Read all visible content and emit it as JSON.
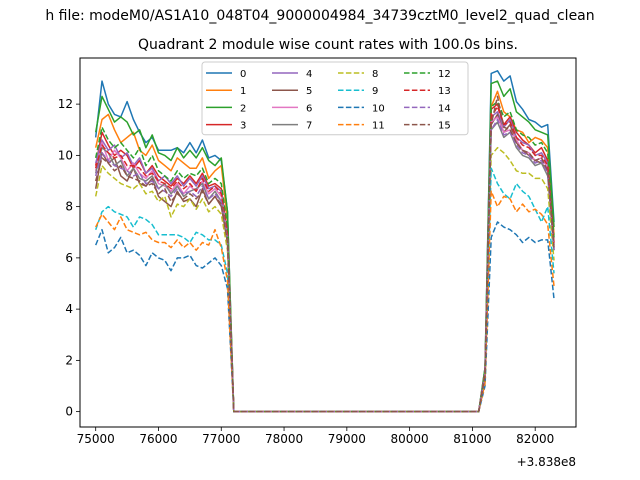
{
  "figure": {
    "suptitle": "h file: modeM0/AS1A10_048T04_9000004984_34739cztM0_level2_quad_clean"
  },
  "chart_data": {
    "type": "line",
    "title": "Quadrant 2 module wise count rates with 100.0s bins.",
    "xlabel": "",
    "ylabel": "",
    "x_offset_label": "+3.838e8",
    "xlim": [
      74750,
      82650
    ],
    "ylim": [
      -0.6,
      13.8
    ],
    "xticks": [
      75000,
      76000,
      77000,
      78000,
      79000,
      80000,
      81000,
      82000
    ],
    "yticks": [
      0,
      2,
      4,
      6,
      8,
      10,
      12
    ],
    "grid": false,
    "legend": {
      "placement": "top-center",
      "columns": 4
    },
    "x": [
      75000,
      75100,
      75200,
      75300,
      75400,
      75500,
      75600,
      75700,
      75800,
      75900,
      76000,
      76100,
      76200,
      76300,
      76400,
      76500,
      76600,
      76700,
      76800,
      76900,
      77000,
      77100,
      77200,
      81100,
      81200,
      81300,
      81400,
      81500,
      81600,
      81700,
      81800,
      81900,
      82000,
      82100,
      82200,
      82300
    ],
    "series": [
      {
        "name": "0",
        "color": "#1f77b4",
        "dash": "solid",
        "values": [
          10.7,
          12.9,
          12.0,
          11.6,
          11.5,
          12.1,
          11.4,
          10.9,
          10.5,
          10.7,
          10.2,
          10.2,
          10.2,
          10.3,
          10.1,
          10.5,
          10.1,
          10.6,
          9.9,
          10.0,
          9.8,
          7.8,
          0,
          0,
          1.7,
          13.2,
          13.3,
          12.9,
          13.1,
          12.1,
          11.8,
          11.4,
          11.3,
          11.1,
          11.2,
          7.4
        ]
      },
      {
        "name": "1",
        "color": "#ff7f0e",
        "dash": "solid",
        "values": [
          10.3,
          11.4,
          11.6,
          11.0,
          10.5,
          10.7,
          10.9,
          10.2,
          10.0,
          10.4,
          9.8,
          9.6,
          9.4,
          9.9,
          9.7,
          9.5,
          9.5,
          9.9,
          9.1,
          9.4,
          9.6,
          7.5,
          0,
          0,
          1.6,
          11.9,
          12.5,
          11.7,
          11.5,
          11.0,
          10.9,
          10.5,
          10.7,
          10.6,
          10.3,
          6.9
        ]
      },
      {
        "name": "2",
        "color": "#2ca02c",
        "dash": "solid",
        "values": [
          10.9,
          12.3,
          11.8,
          11.3,
          11.5,
          11.3,
          10.8,
          11.0,
          10.3,
          10.8,
          10.1,
          10.0,
          9.8,
          10.3,
          9.9,
          10.2,
          9.9,
          10.3,
          9.8,
          9.6,
          9.9,
          7.8,
          0,
          0,
          1.7,
          12.8,
          12.9,
          12.3,
          12.6,
          11.7,
          11.5,
          11.3,
          11.0,
          10.9,
          10.8,
          7.2
        ]
      },
      {
        "name": "3",
        "color": "#d62728",
        "dash": "solid",
        "values": [
          9.6,
          10.9,
          10.4,
          10.0,
          10.2,
          10.0,
          9.5,
          9.8,
          9.3,
          9.6,
          9.2,
          9.0,
          8.8,
          9.1,
          8.9,
          9.2,
          8.9,
          9.3,
          8.8,
          8.9,
          8.7,
          7.0,
          0,
          0,
          1.5,
          11.8,
          12.0,
          11.2,
          11.5,
          10.9,
          10.6,
          10.4,
          10.1,
          10.3,
          9.8,
          6.6
        ]
      },
      {
        "name": "4",
        "color": "#9467bd",
        "dash": "solid",
        "values": [
          9.7,
          10.6,
          10.2,
          10.4,
          9.9,
          10.1,
          9.6,
          9.9,
          9.3,
          9.5,
          9.0,
          9.2,
          8.9,
          9.2,
          8.8,
          9.1,
          8.8,
          9.2,
          8.7,
          8.8,
          8.6,
          6.9,
          0,
          0,
          1.5,
          11.5,
          11.7,
          11.1,
          11.4,
          10.7,
          10.5,
          10.4,
          10.0,
          10.1,
          9.7,
          6.5
        ]
      },
      {
        "name": "5",
        "color": "#8c564b",
        "dash": "solid",
        "values": [
          8.7,
          10.1,
          9.7,
          9.9,
          9.2,
          9.0,
          9.5,
          8.9,
          8.8,
          9.1,
          8.4,
          8.2,
          8.0,
          8.6,
          8.2,
          8.3,
          8.0,
          8.7,
          8.1,
          8.4,
          8.0,
          6.6,
          0,
          0,
          1.4,
          11.2,
          11.6,
          10.9,
          11.2,
          10.5,
          10.2,
          10.0,
          9.8,
          9.7,
          9.4,
          6.3
        ]
      },
      {
        "name": "6",
        "color": "#e377c2",
        "dash": "solid",
        "values": [
          9.4,
          10.5,
          9.8,
          10.2,
          9.9,
          9.4,
          9.7,
          9.3,
          9.1,
          9.4,
          8.9,
          8.8,
          8.6,
          8.9,
          8.5,
          8.8,
          8.6,
          9.0,
          8.5,
          8.7,
          8.4,
          6.8,
          0,
          0,
          1.5,
          11.3,
          11.5,
          10.9,
          11.0,
          10.6,
          10.2,
          10.1,
          9.8,
          9.9,
          9.5,
          6.4
        ]
      },
      {
        "name": "7",
        "color": "#7f7f7f",
        "dash": "solid",
        "values": [
          9.3,
          10.3,
          10.1,
          9.6,
          9.8,
          9.2,
          9.5,
          9.1,
          9.0,
          9.2,
          8.7,
          8.9,
          8.5,
          8.8,
          8.4,
          8.6,
          8.7,
          8.9,
          8.3,
          8.6,
          8.2,
          6.7,
          0,
          0,
          1.4,
          11.0,
          11.3,
          10.7,
          10.9,
          10.3,
          10.0,
          9.9,
          9.6,
          9.7,
          9.2,
          6.3
        ]
      },
      {
        "name": "8",
        "color": "#bcbd22",
        "dash": "dashed",
        "values": [
          8.4,
          9.6,
          9.3,
          9.1,
          8.9,
          8.8,
          8.7,
          8.9,
          8.5,
          8.6,
          8.2,
          8.4,
          7.6,
          8.1,
          8.0,
          8.3,
          7.9,
          8.3,
          7.8,
          8.0,
          7.7,
          6.3,
          0,
          0,
          1.3,
          10.0,
          10.3,
          10.1,
          9.8,
          9.4,
          9.3,
          9.3,
          9.1,
          9.1,
          8.7,
          5.9
        ]
      },
      {
        "name": "9",
        "color": "#17becf",
        "dash": "dashed",
        "values": [
          7.1,
          7.8,
          8.0,
          7.8,
          7.7,
          7.6,
          7.2,
          7.6,
          7.5,
          7.3,
          6.9,
          6.9,
          6.9,
          6.9,
          6.8,
          6.6,
          7.0,
          6.9,
          6.7,
          6.7,
          6.5,
          5.4,
          0,
          0,
          1.2,
          9.5,
          8.9,
          8.5,
          8.3,
          8.9,
          8.6,
          8.4,
          7.9,
          7.4,
          8.0,
          5.4
        ]
      },
      {
        "name": "10",
        "color": "#1f77b4",
        "dash": "dashed",
        "values": [
          6.5,
          7.1,
          6.2,
          6.4,
          6.8,
          6.2,
          6.3,
          6.1,
          5.7,
          6.2,
          6.0,
          5.9,
          5.5,
          6.0,
          6.0,
          6.1,
          5.7,
          5.6,
          5.8,
          6.0,
          5.7,
          4.8,
          0,
          0,
          1.0,
          6.8,
          7.4,
          7.2,
          7.1,
          6.9,
          6.6,
          6.8,
          6.6,
          6.7,
          6.7,
          4.4
        ]
      },
      {
        "name": "11",
        "color": "#ff7f0e",
        "dash": "dashed",
        "values": [
          7.2,
          7.7,
          7.4,
          7.1,
          7.6,
          7.1,
          7.0,
          6.9,
          7.0,
          6.7,
          6.6,
          6.6,
          6.4,
          6.7,
          6.4,
          6.6,
          6.3,
          6.6,
          6.5,
          7.1,
          6.4,
          5.1,
          0,
          0,
          1.1,
          8.6,
          8.0,
          8.4,
          8.3,
          7.8,
          8.1,
          7.8,
          7.9,
          7.7,
          7.3,
          4.9
        ]
      },
      {
        "name": "12",
        "color": "#2ca02c",
        "dash": "dashed",
        "values": [
          9.9,
          11.1,
          10.6,
          10.3,
          10.5,
          10.2,
          9.9,
          10.3,
          9.6,
          10.0,
          9.4,
          9.2,
          9.0,
          9.4,
          9.1,
          9.3,
          9.2,
          9.5,
          8.9,
          9.1,
          8.9,
          7.2,
          0,
          0,
          1.5,
          11.9,
          12.1,
          11.5,
          11.7,
          11.0,
          10.8,
          10.7,
          10.4,
          10.5,
          10.1,
          6.8
        ]
      },
      {
        "name": "13",
        "color": "#d62728",
        "dash": "dashed",
        "values": [
          9.5,
          10.4,
          10.1,
          9.9,
          10.0,
          9.6,
          9.6,
          9.5,
          9.2,
          9.3,
          9.0,
          8.9,
          8.7,
          9.0,
          8.7,
          8.9,
          8.6,
          9.1,
          8.6,
          8.8,
          8.5,
          6.9,
          0,
          0,
          1.5,
          11.5,
          11.9,
          11.2,
          11.3,
          10.7,
          10.4,
          10.3,
          10.0,
          10.0,
          9.6,
          6.5
        ]
      },
      {
        "name": "14",
        "color": "#9467bd",
        "dash": "dashed",
        "values": [
          9.2,
          10.1,
          9.8,
          9.6,
          9.5,
          9.4,
          9.2,
          9.3,
          8.9,
          9.0,
          8.7,
          8.6,
          8.4,
          8.7,
          8.5,
          8.6,
          8.4,
          8.8,
          8.3,
          8.5,
          8.2,
          6.7,
          0,
          0,
          1.4,
          11.0,
          11.4,
          10.8,
          10.9,
          10.4,
          10.1,
          10.0,
          9.7,
          9.8,
          9.3,
          6.3
        ]
      },
      {
        "name": "15",
        "color": "#8c564b",
        "dash": "dashed",
        "values": [
          9.0,
          9.9,
          9.7,
          9.4,
          9.6,
          9.2,
          9.1,
          9.0,
          8.8,
          8.9,
          8.5,
          8.7,
          8.2,
          8.5,
          8.3,
          8.5,
          8.3,
          8.6,
          8.1,
          8.4,
          8.1,
          6.6,
          0,
          0,
          1.4,
          11.2,
          12.3,
          11.1,
          11.0,
          10.5,
          10.2,
          10.1,
          9.8,
          9.9,
          9.4,
          6.4
        ]
      }
    ]
  }
}
